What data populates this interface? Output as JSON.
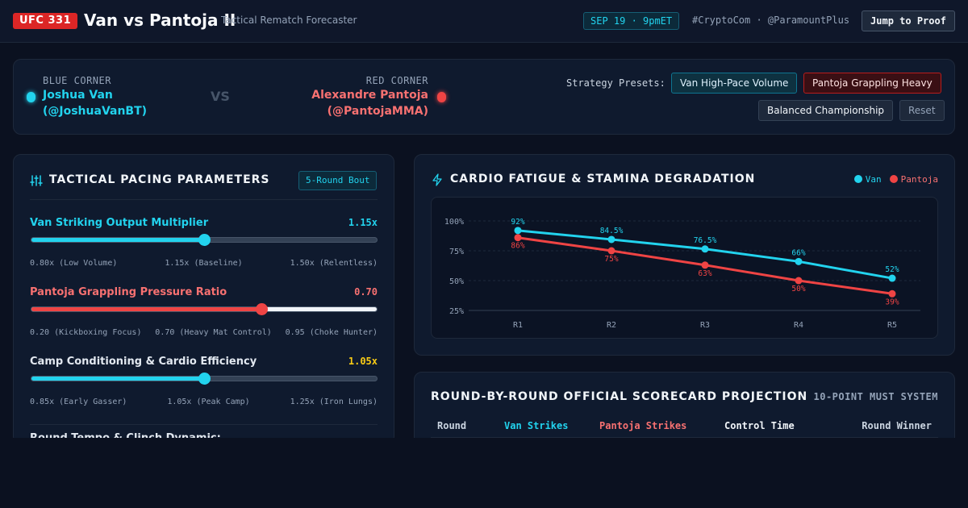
{
  "header": {
    "event_badge": "UFC 331",
    "title": "Van vs Pantoja II",
    "subtitle": "Tactical Rematch Forecaster",
    "date": "SEP 19 · 9pmET",
    "hashtags": "#CryptoCom · @ParamountPlus",
    "proof_button": "Jump to Proof"
  },
  "matchup": {
    "blue_label": "BLUE CORNER",
    "blue_name": "Joshua Van",
    "blue_handle": "(@JoshuaVanBT)",
    "vs": "VS",
    "red_label": "RED CORNER",
    "red_name": "Alexandre Pantoja",
    "red_handle": "(@PantojaMMA)",
    "presets_label": "Strategy Presets:",
    "presets": [
      "Van High-Pace Volume",
      "Pantoja Grappling Heavy",
      "Balanced Championship"
    ],
    "reset": "Reset"
  },
  "params": {
    "title": "TACTICAL PACING PARAMETERS",
    "rounds_badge": "5-Round Bout",
    "items": [
      {
        "label": "Van Striking Output Multiplier",
        "value": "1.15x",
        "fraction": 0.5,
        "ticks": [
          "0.80x (Low Volume)",
          "1.15x (Baseline)",
          "1.50x (Relentless)"
        ],
        "color": "#22d3ee",
        "track": "#334155"
      },
      {
        "label": "Pantoja Grappling Pressure Ratio",
        "value": "0.70",
        "fraction": 0.667,
        "ticks": [
          "0.20 (Kickboxing Focus)",
          "0.70 (Heavy Mat Control)",
          "0.95 (Choke Hunter)"
        ],
        "color": "#ef4444",
        "track": "#f1f5f9"
      },
      {
        "label": "Camp Conditioning & Cardio Efficiency",
        "value": "1.05x",
        "fraction": 0.5,
        "ticks": [
          "0.85x (Early Gasser)",
          "1.05x (Peak Camp)",
          "1.25x (Iron Lungs)"
        ],
        "color": "#22d3ee",
        "track": "#334155"
      }
    ],
    "next_section": "Round Tempo & Clinch Dynamic:"
  },
  "colors": {
    "van": "#22d3ee",
    "pantoja": "#ef4444",
    "camp_value": "#facc15"
  },
  "chart": {
    "title": "CARDIO FATIGUE & STAMINA DEGRADATION",
    "legend_van": "Van",
    "legend_pantoja": "Pantoja"
  },
  "chart_data": {
    "type": "line",
    "categories": [
      "R1",
      "R2",
      "R3",
      "R4",
      "R5"
    ],
    "yticks": [
      "100%",
      "75%",
      "50%",
      "25%"
    ],
    "ylim": [
      25,
      100
    ],
    "grid": true,
    "legend": "top-right",
    "series": [
      {
        "name": "Van",
        "values": [
          92,
          84.5,
          76.5,
          66,
          52
        ],
        "labels": [
          "92%",
          "84.5%",
          "76.5%",
          "66%",
          "52%"
        ]
      },
      {
        "name": "Pantoja",
        "values": [
          86,
          75,
          63,
          50,
          39
        ],
        "labels": [
          "86%",
          "75%",
          "63%",
          "50%",
          "39%"
        ]
      }
    ]
  },
  "scorecard": {
    "title": "ROUND-BY-ROUND OFFICIAL SCORECARD PROJECTION",
    "subtitle": "10-POINT MUST SYSTEM",
    "columns": [
      "Round",
      "Van Strikes",
      "Pantoja Strikes",
      "Control Time",
      "Round Winner"
    ]
  }
}
